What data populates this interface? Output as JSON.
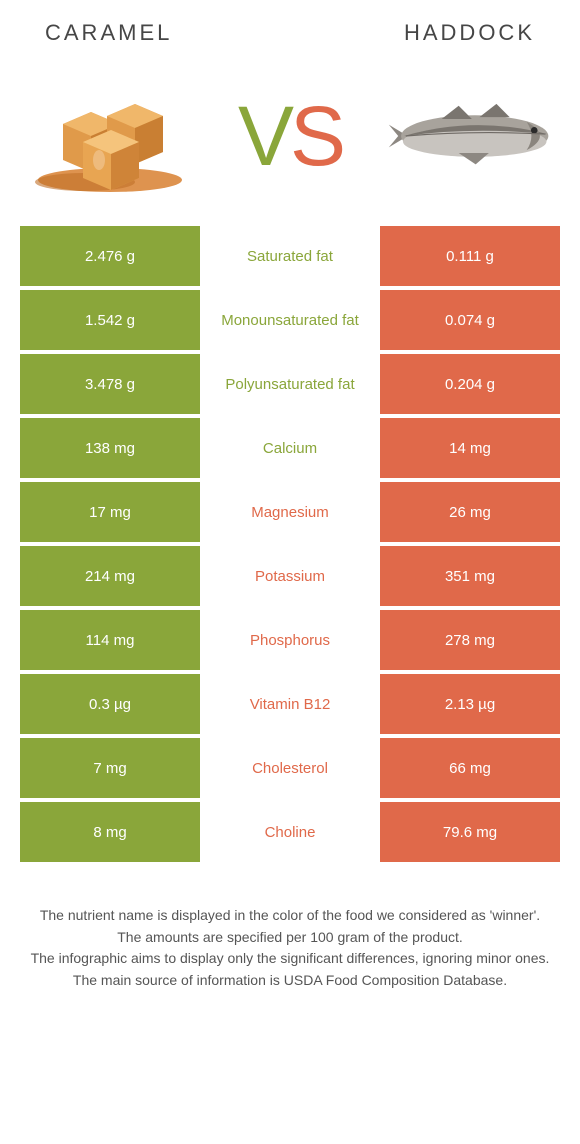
{
  "header": {
    "left_title": "CARAMEL",
    "right_title": "HADDOCK"
  },
  "vs": {
    "v": "V",
    "s": "S"
  },
  "colors": {
    "green": "#8aa63a",
    "orange": "#e0694a",
    "caramel_body": "#e09a4a",
    "caramel_top": "#f0b76a",
    "caramel_shadow": "#c07830",
    "sauce": "#d88030",
    "fish_body": "#9a9590",
    "fish_light": "#c8c4bf",
    "fish_dark": "#6f6a65"
  },
  "rows": [
    {
      "left": "2.476 g",
      "label": "Saturated fat",
      "right": "0.111 g",
      "winner": "left"
    },
    {
      "left": "1.542 g",
      "label": "Monounsaturated fat",
      "right": "0.074 g",
      "winner": "left"
    },
    {
      "left": "3.478 g",
      "label": "Polyunsaturated fat",
      "right": "0.204 g",
      "winner": "left"
    },
    {
      "left": "138 mg",
      "label": "Calcium",
      "right": "14 mg",
      "winner": "left"
    },
    {
      "left": "17 mg",
      "label": "Magnesium",
      "right": "26 mg",
      "winner": "right"
    },
    {
      "left": "214 mg",
      "label": "Potassium",
      "right": "351 mg",
      "winner": "right"
    },
    {
      "left": "114 mg",
      "label": "Phosphorus",
      "right": "278 mg",
      "winner": "right"
    },
    {
      "left": "0.3 µg",
      "label": "Vitamin B12",
      "right": "2.13 µg",
      "winner": "right"
    },
    {
      "left": "7 mg",
      "label": "Cholesterol",
      "right": "66 mg",
      "winner": "right"
    },
    {
      "left": "8 mg",
      "label": "Choline",
      "right": "79.6 mg",
      "winner": "right"
    }
  ],
  "footnotes": [
    "The nutrient name is displayed in the color of the food we considered as 'winner'.",
    "The amounts are specified per 100 gram of the product.",
    "The infographic aims to display only the significant differences, ignoring minor ones.",
    "The main source of information is USDA Food Composition Database."
  ]
}
